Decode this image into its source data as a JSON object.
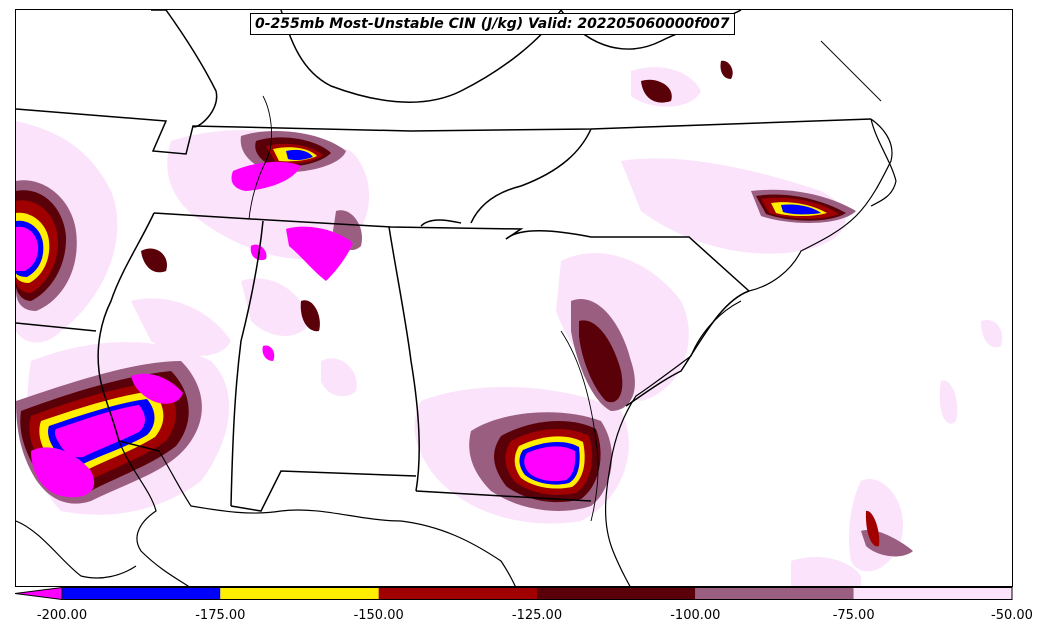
{
  "title": "0-255mb Most-Unstable CIN (J/kg) Valid: 202205060000f007",
  "colorbar": {
    "segments": [
      {
        "from": -200,
        "to": -175,
        "color": "#0000ff"
      },
      {
        "from": -175,
        "to": -150,
        "color": "#ffee00"
      },
      {
        "from": -150,
        "to": -125,
        "color": "#a00000"
      },
      {
        "from": -125,
        "to": -100,
        "color": "#5a0008"
      },
      {
        "from": -100,
        "to": -75,
        "color": "#9a5f80"
      },
      {
        "from": -75,
        "to": -50,
        "color": "#fbe3fb"
      }
    ],
    "extend_low_color": "#ff00ff",
    "ticks": [
      "-200.00",
      "-175.00",
      "-150.00",
      "-125.00",
      "-100.00",
      "-75.00",
      "-50.00"
    ]
  }
}
